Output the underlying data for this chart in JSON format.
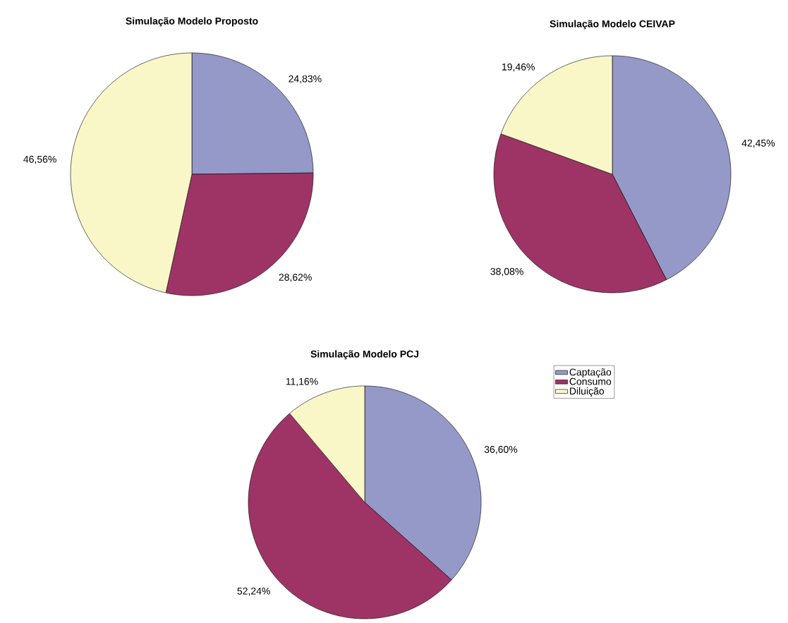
{
  "chart_data": [
    {
      "type": "pie",
      "title": "Simulação Modelo Proposto",
      "categories": [
        null,
        null,
        null
      ],
      "values": [
        24.83,
        28.62,
        46.56
      ],
      "colors": [
        "#9499c8",
        "#9e3465",
        "#f9f6c8"
      ],
      "value_labels": [
        "24,83%",
        "28,62%",
        "46,56%"
      ]
    },
    {
      "type": "pie",
      "title": "Simulação Modelo CEIVAP",
      "categories": [
        null,
        null,
        null
      ],
      "values": [
        42.45,
        38.08,
        19.46
      ],
      "colors": [
        "#9499c8",
        "#9e3465",
        "#f9f6c8"
      ],
      "value_labels": [
        "42,45%",
        "38,08%",
        "19,46%"
      ]
    },
    {
      "type": "pie",
      "title": "Simulação Modelo PCJ",
      "categories": [
        "Captação",
        "Consumo",
        "Diluição"
      ],
      "values": [
        36.6,
        52.24,
        11.16
      ],
      "colors": [
        "#9499c8",
        "#9e3465",
        "#f9f6c8"
      ],
      "value_labels": [
        "36,60%",
        "52,24%",
        "11,16%"
      ],
      "legend": "right"
    }
  ]
}
